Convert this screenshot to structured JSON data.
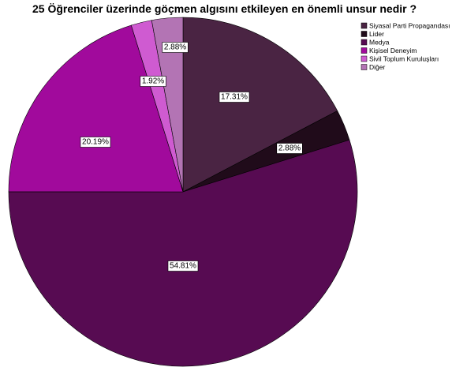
{
  "chart_data": {
    "type": "pie",
    "title": "25 Öğrenciler üzerinde göçmen algısını etkileyen en önemli unsur nedir ?",
    "categories": [
      "Siyasal Parti Propagandası",
      "Lider",
      "Medya",
      "Kişisel Deneyim",
      "Sivil Toplum Kuruluşları",
      "Diğer"
    ],
    "values": [
      17.31,
      2.88,
      54.81,
      20.19,
      1.92,
      2.88
    ],
    "labels": [
      "17.31%",
      "2.88%",
      "54.81%",
      "20.19%",
      "1.92%",
      "2.88%"
    ],
    "colors": [
      "#4a2443",
      "#200b1a",
      "#570b52",
      "#a10a9c",
      "#cf5bd1",
      "#b374b4"
    ],
    "start_angle_deg": 0,
    "direction": "clockwise",
    "legend_position": "top-right"
  }
}
